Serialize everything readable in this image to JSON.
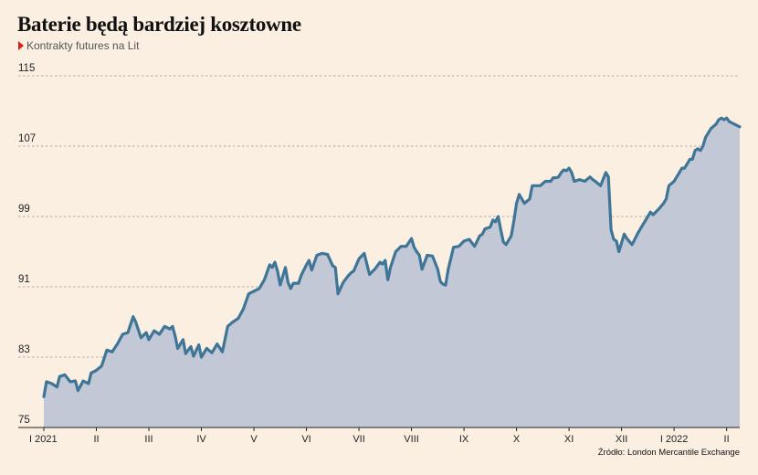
{
  "header": {
    "title": "Baterie będą bardziej kosztowne",
    "subtitle": "Kontrakty futures na Lit"
  },
  "footer": {
    "source": "Źródło: London Mercantile Exchange"
  },
  "colors": {
    "line": "#3f7596",
    "fill": "#c3c8d6",
    "background": "#fbefe2",
    "grid": "#999999",
    "marker": "#d81e1e"
  },
  "chart_data": {
    "type": "area",
    "title": "Baterie będą bardziej kosztowne",
    "subtitle": "Kontrakty futures na Lit",
    "ylim": [
      75,
      115
    ],
    "yticks": [
      75,
      83,
      91,
      99,
      107,
      115
    ],
    "grid": "horizontal dashed",
    "xlim": [
      0,
      13.25
    ],
    "x_categories": [
      "I 2021",
      "II",
      "III",
      "IV",
      "V",
      "VI",
      "VII",
      "VIII",
      "IX",
      "X",
      "XI",
      "XII",
      "I 2022",
      "II"
    ],
    "x_category_positions": [
      0,
      1,
      2,
      3,
      4,
      5,
      6,
      7,
      8,
      9,
      10,
      11,
      12,
      13
    ],
    "series": [
      {
        "values": [
          [
            0.0,
            78.5
          ],
          [
            0.05,
            80.2
          ],
          [
            0.15,
            80.0
          ],
          [
            0.25,
            79.6
          ],
          [
            0.3,
            80.8
          ],
          [
            0.4,
            81.0
          ],
          [
            0.5,
            80.2
          ],
          [
            0.6,
            80.3
          ],
          [
            0.65,
            79.2
          ],
          [
            0.75,
            80.3
          ],
          [
            0.85,
            80.0
          ],
          [
            0.9,
            81.2
          ],
          [
            1.0,
            81.5
          ],
          [
            1.1,
            82.0
          ],
          [
            1.2,
            83.8
          ],
          [
            1.3,
            83.6
          ],
          [
            1.4,
            84.5
          ],
          [
            1.5,
            85.6
          ],
          [
            1.6,
            85.8
          ],
          [
            1.7,
            87.6
          ],
          [
            1.75,
            87.0
          ],
          [
            1.85,
            85.2
          ],
          [
            1.95,
            85.8
          ],
          [
            2.0,
            85.0
          ],
          [
            2.1,
            86.0
          ],
          [
            2.2,
            85.6
          ],
          [
            2.3,
            86.5
          ],
          [
            2.4,
            86.2
          ],
          [
            2.45,
            86.5
          ],
          [
            2.5,
            85.4
          ],
          [
            2.55,
            84.0
          ],
          [
            2.65,
            85.0
          ],
          [
            2.7,
            83.4
          ],
          [
            2.8,
            84.2
          ],
          [
            2.85,
            83.1
          ],
          [
            2.95,
            84.4
          ],
          [
            3.0,
            83.0
          ],
          [
            3.1,
            84.0
          ],
          [
            3.2,
            83.5
          ],
          [
            3.3,
            84.5
          ],
          [
            3.4,
            83.6
          ],
          [
            3.5,
            86.5
          ],
          [
            3.6,
            87.0
          ],
          [
            3.7,
            87.4
          ],
          [
            3.8,
            88.5
          ],
          [
            3.9,
            90.2
          ],
          [
            4.0,
            90.5
          ],
          [
            4.1,
            90.8
          ],
          [
            4.2,
            91.8
          ],
          [
            4.3,
            93.5
          ],
          [
            4.35,
            93.2
          ],
          [
            4.4,
            93.8
          ],
          [
            4.45,
            92.8
          ],
          [
            4.5,
            91.2
          ],
          [
            4.6,
            93.2
          ],
          [
            4.65,
            91.5
          ],
          [
            4.7,
            90.8
          ],
          [
            4.75,
            91.4
          ],
          [
            4.85,
            91.4
          ],
          [
            4.9,
            92.3
          ],
          [
            5.0,
            93.5
          ],
          [
            5.05,
            94.0
          ],
          [
            5.1,
            92.9
          ],
          [
            5.2,
            94.6
          ],
          [
            5.3,
            94.8
          ],
          [
            5.4,
            94.7
          ],
          [
            5.5,
            93.4
          ],
          [
            5.55,
            93.2
          ],
          [
            5.6,
            90.2
          ],
          [
            5.7,
            91.5
          ],
          [
            5.8,
            92.3
          ],
          [
            5.85,
            92.6
          ],
          [
            5.9,
            92.8
          ],
          [
            6.0,
            94.2
          ],
          [
            6.1,
            94.8
          ],
          [
            6.2,
            92.4
          ],
          [
            6.3,
            93.0
          ],
          [
            6.4,
            93.8
          ],
          [
            6.45,
            93.6
          ],
          [
            6.5,
            94.0
          ],
          [
            6.55,
            91.8
          ],
          [
            6.6,
            93.2
          ],
          [
            6.7,
            95.0
          ],
          [
            6.8,
            95.6
          ],
          [
            6.9,
            95.6
          ],
          [
            7.0,
            96.5
          ],
          [
            7.05,
            95.5
          ],
          [
            7.1,
            95.0
          ],
          [
            7.15,
            94.6
          ],
          [
            7.2,
            93.0
          ],
          [
            7.3,
            94.6
          ],
          [
            7.4,
            94.5
          ],
          [
            7.5,
            93.0
          ],
          [
            7.55,
            91.6
          ],
          [
            7.6,
            91.3
          ],
          [
            7.65,
            91.2
          ],
          [
            7.7,
            93.0
          ],
          [
            7.8,
            95.5
          ],
          [
            7.9,
            95.6
          ],
          [
            8.0,
            96.2
          ],
          [
            8.1,
            96.4
          ],
          [
            8.2,
            95.6
          ],
          [
            8.3,
            96.8
          ],
          [
            8.35,
            97.0
          ],
          [
            8.4,
            97.6
          ],
          [
            8.5,
            97.8
          ],
          [
            8.55,
            98.6
          ],
          [
            8.6,
            98.4
          ],
          [
            8.65,
            99.0
          ],
          [
            8.7,
            97.5
          ],
          [
            8.75,
            96.1
          ],
          [
            8.8,
            95.8
          ],
          [
            8.9,
            96.8
          ],
          [
            8.95,
            98.5
          ],
          [
            9.0,
            100.5
          ],
          [
            9.05,
            101.5
          ],
          [
            9.15,
            100.5
          ],
          [
            9.25,
            101.0
          ],
          [
            9.3,
            102.5
          ],
          [
            9.45,
            102.5
          ],
          [
            9.55,
            103.0
          ],
          [
            9.65,
            103.0
          ],
          [
            9.7,
            103.4
          ],
          [
            9.75,
            103.4
          ],
          [
            9.8,
            103.5
          ],
          [
            9.85,
            104.0
          ],
          [
            9.9,
            104.3
          ],
          [
            9.95,
            104.2
          ],
          [
            10.0,
            104.5
          ],
          [
            10.05,
            104.0
          ],
          [
            10.1,
            103.0
          ],
          [
            10.2,
            103.2
          ],
          [
            10.3,
            103.0
          ],
          [
            10.4,
            103.5
          ],
          [
            10.45,
            103.2
          ],
          [
            10.5,
            103.0
          ],
          [
            10.6,
            102.5
          ],
          [
            10.7,
            104.0
          ],
          [
            10.75,
            103.5
          ],
          [
            10.8,
            97.5
          ],
          [
            10.85,
            96.4
          ],
          [
            10.9,
            96.2
          ],
          [
            10.95,
            95.0
          ],
          [
            11.0,
            96.0
          ],
          [
            11.05,
            97.0
          ],
          [
            11.1,
            96.5
          ],
          [
            11.2,
            95.8
          ],
          [
            11.3,
            97.0
          ],
          [
            11.35,
            97.5
          ],
          [
            11.4,
            98.0
          ],
          [
            11.5,
            99.0
          ],
          [
            11.55,
            99.5
          ],
          [
            11.6,
            99.2
          ],
          [
            11.7,
            99.8
          ],
          [
            11.8,
            100.5
          ],
          [
            11.85,
            101.0
          ],
          [
            11.9,
            102.5
          ],
          [
            12.0,
            103.0
          ],
          [
            12.05,
            103.5
          ],
          [
            12.1,
            104.0
          ],
          [
            12.15,
            104.5
          ],
          [
            12.2,
            104.5
          ],
          [
            12.3,
            105.5
          ],
          [
            12.35,
            105.5
          ],
          [
            12.4,
            106.5
          ],
          [
            12.45,
            106.7
          ],
          [
            12.5,
            106.5
          ],
          [
            12.55,
            107.0
          ],
          [
            12.6,
            108.0
          ],
          [
            12.65,
            108.5
          ],
          [
            12.7,
            109.0
          ],
          [
            12.8,
            109.5
          ],
          [
            12.85,
            110.0
          ],
          [
            12.9,
            110.2
          ],
          [
            12.95,
            110.0
          ],
          [
            13.0,
            110.2
          ],
          [
            13.05,
            109.8
          ],
          [
            13.15,
            109.5
          ],
          [
            13.25,
            109.2
          ]
        ]
      }
    ]
  }
}
